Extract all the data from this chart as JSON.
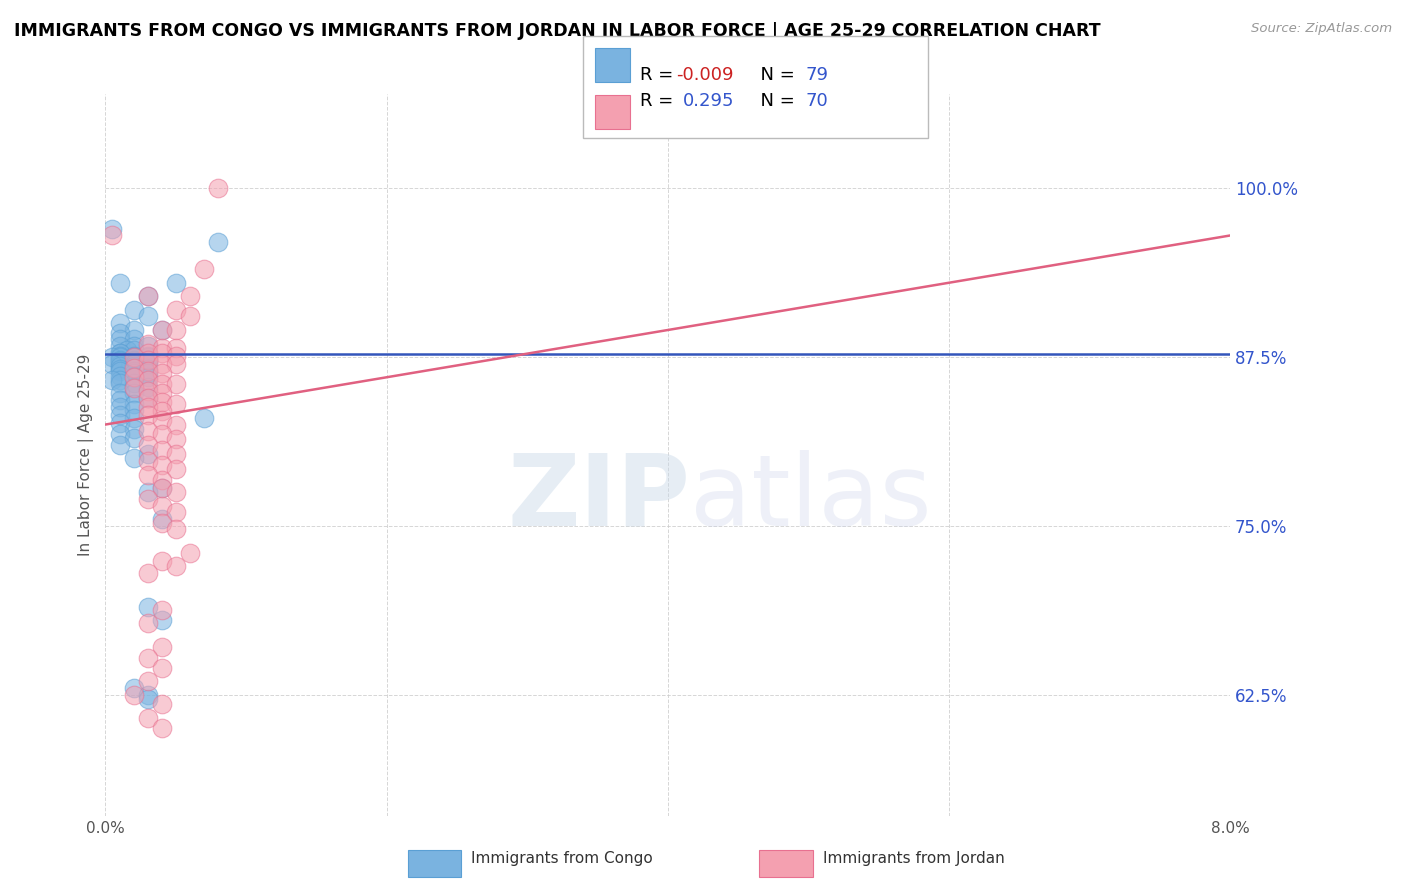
{
  "title": "IMMIGRANTS FROM CONGO VS IMMIGRANTS FROM JORDAN IN LABOR FORCE | AGE 25-29 CORRELATION CHART",
  "source": "Source: ZipAtlas.com",
  "ylabel": "In Labor Force | Age 25-29",
  "yticks": [
    0.625,
    0.75,
    0.875,
    1.0
  ],
  "ytick_labels": [
    "62.5%",
    "75.0%",
    "87.5%",
    "100.0%"
  ],
  "xlim": [
    0.0,
    0.08
  ],
  "ylim": [
    0.535,
    1.07
  ],
  "congo_color": "#7ab3e0",
  "congo_edge_color": "#5a9fd4",
  "jordan_color": "#f4a0b0",
  "jordan_edge_color": "#e87090",
  "congo_R": -0.009,
  "congo_N": 79,
  "jordan_R": 0.295,
  "jordan_N": 70,
  "congo_line_color": "#3355bb",
  "jordan_line_color": "#e06080",
  "congo_line_y0": 0.877,
  "congo_line_y1": 0.877,
  "jordan_line_y0": 0.825,
  "jordan_line_y1": 0.965,
  "watermark_zip": "ZIP",
  "watermark_atlas": "atlas",
  "legend_label_congo": "Immigrants from Congo",
  "legend_label_jordan": "Immigrants from Jordan",
  "congo_scatter": [
    [
      0.0005,
      0.97
    ],
    [
      0.008,
      0.96
    ],
    [
      0.003,
      0.92
    ],
    [
      0.007,
      0.83
    ],
    [
      0.004,
      0.895
    ],
    [
      0.005,
      0.93
    ],
    [
      0.001,
      0.93
    ],
    [
      0.002,
      0.91
    ],
    [
      0.003,
      0.905
    ],
    [
      0.001,
      0.9
    ],
    [
      0.002,
      0.895
    ],
    [
      0.001,
      0.893
    ],
    [
      0.001,
      0.888
    ],
    [
      0.002,
      0.888
    ],
    [
      0.002,
      0.883
    ],
    [
      0.001,
      0.883
    ],
    [
      0.003,
      0.883
    ],
    [
      0.0015,
      0.88
    ],
    [
      0.002,
      0.88
    ],
    [
      0.001,
      0.878
    ],
    [
      0.001,
      0.878
    ],
    [
      0.002,
      0.876
    ],
    [
      0.003,
      0.876
    ],
    [
      0.001,
      0.876
    ],
    [
      0.002,
      0.875
    ],
    [
      0.003,
      0.875
    ],
    [
      0.0005,
      0.875
    ],
    [
      0.001,
      0.875
    ],
    [
      0.001,
      0.873
    ],
    [
      0.002,
      0.873
    ],
    [
      0.003,
      0.873
    ],
    [
      0.002,
      0.872
    ],
    [
      0.003,
      0.872
    ],
    [
      0.001,
      0.872
    ],
    [
      0.001,
      0.87
    ],
    [
      0.002,
      0.87
    ],
    [
      0.003,
      0.87
    ],
    [
      0.0005,
      0.87
    ],
    [
      0.001,
      0.868
    ],
    [
      0.002,
      0.868
    ],
    [
      0.003,
      0.866
    ],
    [
      0.001,
      0.866
    ],
    [
      0.002,
      0.865
    ],
    [
      0.001,
      0.865
    ],
    [
      0.002,
      0.863
    ],
    [
      0.003,
      0.863
    ],
    [
      0.001,
      0.861
    ],
    [
      0.002,
      0.861
    ],
    [
      0.003,
      0.86
    ],
    [
      0.002,
      0.86
    ],
    [
      0.001,
      0.858
    ],
    [
      0.0005,
      0.858
    ],
    [
      0.002,
      0.856
    ],
    [
      0.001,
      0.856
    ],
    [
      0.002,
      0.853
    ],
    [
      0.003,
      0.853
    ],
    [
      0.001,
      0.848
    ],
    [
      0.002,
      0.848
    ],
    [
      0.003,
      0.845
    ],
    [
      0.001,
      0.843
    ],
    [
      0.002,
      0.84
    ],
    [
      0.001,
      0.838
    ],
    [
      0.002,
      0.836
    ],
    [
      0.001,
      0.832
    ],
    [
      0.002,
      0.83
    ],
    [
      0.001,
      0.826
    ],
    [
      0.002,
      0.822
    ],
    [
      0.001,
      0.818
    ],
    [
      0.002,
      0.815
    ],
    [
      0.001,
      0.81
    ],
    [
      0.003,
      0.803
    ],
    [
      0.002,
      0.8
    ],
    [
      0.004,
      0.778
    ],
    [
      0.003,
      0.775
    ],
    [
      0.004,
      0.755
    ],
    [
      0.003,
      0.69
    ],
    [
      0.004,
      0.68
    ],
    [
      0.002,
      0.63
    ],
    [
      0.003,
      0.625
    ],
    [
      0.003,
      0.622
    ]
  ],
  "jordan_scatter": [
    [
      0.008,
      1.0
    ],
    [
      0.0005,
      0.965
    ],
    [
      0.007,
      0.94
    ],
    [
      0.006,
      0.92
    ],
    [
      0.003,
      0.92
    ],
    [
      0.005,
      0.91
    ],
    [
      0.006,
      0.905
    ],
    [
      0.004,
      0.895
    ],
    [
      0.005,
      0.895
    ],
    [
      0.003,
      0.885
    ],
    [
      0.004,
      0.882
    ],
    [
      0.005,
      0.882
    ],
    [
      0.003,
      0.878
    ],
    [
      0.004,
      0.878
    ],
    [
      0.005,
      0.876
    ],
    [
      0.002,
      0.875
    ],
    [
      0.003,
      0.873
    ],
    [
      0.004,
      0.87
    ],
    [
      0.005,
      0.87
    ],
    [
      0.002,
      0.867
    ],
    [
      0.003,
      0.865
    ],
    [
      0.004,
      0.863
    ],
    [
      0.002,
      0.86
    ],
    [
      0.003,
      0.858
    ],
    [
      0.004,
      0.855
    ],
    [
      0.005,
      0.855
    ],
    [
      0.002,
      0.852
    ],
    [
      0.003,
      0.85
    ],
    [
      0.004,
      0.848
    ],
    [
      0.003,
      0.845
    ],
    [
      0.004,
      0.842
    ],
    [
      0.005,
      0.84
    ],
    [
      0.003,
      0.838
    ],
    [
      0.004,
      0.835
    ],
    [
      0.003,
      0.832
    ],
    [
      0.004,
      0.828
    ],
    [
      0.005,
      0.825
    ],
    [
      0.003,
      0.82
    ],
    [
      0.004,
      0.818
    ],
    [
      0.005,
      0.814
    ],
    [
      0.003,
      0.81
    ],
    [
      0.004,
      0.806
    ],
    [
      0.005,
      0.803
    ],
    [
      0.003,
      0.798
    ],
    [
      0.004,
      0.795
    ],
    [
      0.005,
      0.792
    ],
    [
      0.003,
      0.788
    ],
    [
      0.004,
      0.784
    ],
    [
      0.004,
      0.778
    ],
    [
      0.005,
      0.775
    ],
    [
      0.003,
      0.77
    ],
    [
      0.004,
      0.765
    ],
    [
      0.005,
      0.76
    ],
    [
      0.004,
      0.752
    ],
    [
      0.005,
      0.748
    ],
    [
      0.006,
      0.73
    ],
    [
      0.004,
      0.724
    ],
    [
      0.005,
      0.72
    ],
    [
      0.003,
      0.715
    ],
    [
      0.004,
      0.688
    ],
    [
      0.003,
      0.678
    ],
    [
      0.004,
      0.66
    ],
    [
      0.003,
      0.652
    ],
    [
      0.004,
      0.645
    ],
    [
      0.003,
      0.635
    ],
    [
      0.002,
      0.625
    ],
    [
      0.004,
      0.618
    ],
    [
      0.003,
      0.608
    ],
    [
      0.004,
      0.6
    ]
  ]
}
